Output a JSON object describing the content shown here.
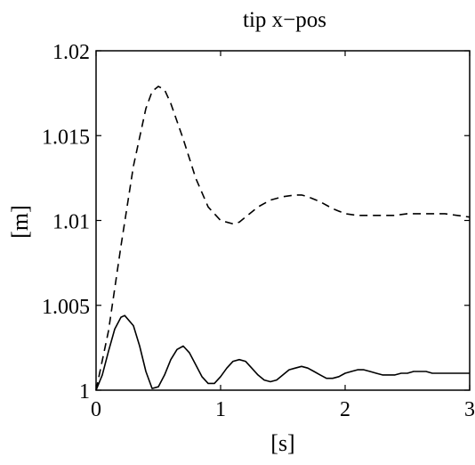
{
  "chart_data": {
    "type": "line",
    "title": "tip x−pos",
    "xlabel": "[s]",
    "ylabel": "[m]",
    "xlim": [
      0,
      3
    ],
    "ylim": [
      1,
      1.02
    ],
    "xticks": [
      0,
      1,
      2,
      3
    ],
    "xtick_labels": [
      "0",
      "1",
      "2",
      "3"
    ],
    "yticks": [
      1,
      1.005,
      1.01,
      1.015,
      1.02
    ],
    "ytick_labels": [
      "1",
      "1.005",
      "1.01",
      "1.015",
      "1.02"
    ],
    "grid": false,
    "legend": "none",
    "series": [
      {
        "style": "dashed",
        "color": "#000000",
        "x": [
          0,
          0.1,
          0.2,
          0.3,
          0.4,
          0.45,
          0.5,
          0.55,
          0.6,
          0.7,
          0.8,
          0.9,
          1.0,
          1.1,
          1.15,
          1.2,
          1.3,
          1.4,
          1.5,
          1.6,
          1.65,
          1.7,
          1.8,
          1.9,
          2.0,
          2.1,
          2.2,
          2.3,
          2.4,
          2.5,
          2.6,
          2.7,
          2.8,
          2.9,
          3.0
        ],
        "y": [
          1.0,
          1.0035,
          1.0085,
          1.0132,
          1.0166,
          1.0176,
          1.0179,
          1.0177,
          1.0169,
          1.0148,
          1.0125,
          1.0108,
          1.01,
          1.0098,
          1.0099,
          1.0102,
          1.0108,
          1.0112,
          1.0114,
          1.0115,
          1.0115,
          1.0114,
          1.0111,
          1.0107,
          1.0104,
          1.0103,
          1.0103,
          1.0103,
          1.0103,
          1.0104,
          1.0104,
          1.0104,
          1.0104,
          1.0103,
          1.0102
        ]
      },
      {
        "style": "solid",
        "color": "#000000",
        "x": [
          0,
          0.05,
          0.1,
          0.15,
          0.2,
          0.23,
          0.3,
          0.35,
          0.4,
          0.45,
          0.5,
          0.55,
          0.6,
          0.65,
          0.7,
          0.75,
          0.8,
          0.85,
          0.9,
          0.95,
          1.0,
          1.05,
          1.1,
          1.15,
          1.2,
          1.25,
          1.3,
          1.35,
          1.4,
          1.45,
          1.5,
          1.55,
          1.6,
          1.65,
          1.7,
          1.75,
          1.8,
          1.85,
          1.9,
          1.95,
          2.0,
          2.05,
          2.1,
          2.15,
          2.2,
          2.25,
          2.3,
          2.35,
          2.4,
          2.45,
          2.5,
          2.55,
          2.6,
          2.65,
          2.7,
          2.75,
          2.8,
          2.85,
          2.9,
          2.95,
          3.0
        ],
        "y": [
          1.0,
          1.0009,
          1.0023,
          1.0036,
          1.0043,
          1.0044,
          1.0038,
          1.0026,
          1.0011,
          1.0001,
          1.0002,
          1.0009,
          1.0018,
          1.0024,
          1.0026,
          1.0022,
          1.0015,
          1.0008,
          1.0004,
          1.0004,
          1.0008,
          1.0013,
          1.0017,
          1.0018,
          1.0017,
          1.0013,
          1.0009,
          1.0006,
          1.0005,
          1.0006,
          1.0009,
          1.0012,
          1.0013,
          1.0014,
          1.0013,
          1.0011,
          1.0009,
          1.0007,
          1.0007,
          1.0008,
          1.001,
          1.0011,
          1.0012,
          1.0012,
          1.0011,
          1.001,
          1.0009,
          1.0009,
          1.0009,
          1.001,
          1.001,
          1.0011,
          1.0011,
          1.0011,
          1.001,
          1.001,
          1.001,
          1.001,
          1.001,
          1.001,
          1.001
        ]
      }
    ]
  }
}
